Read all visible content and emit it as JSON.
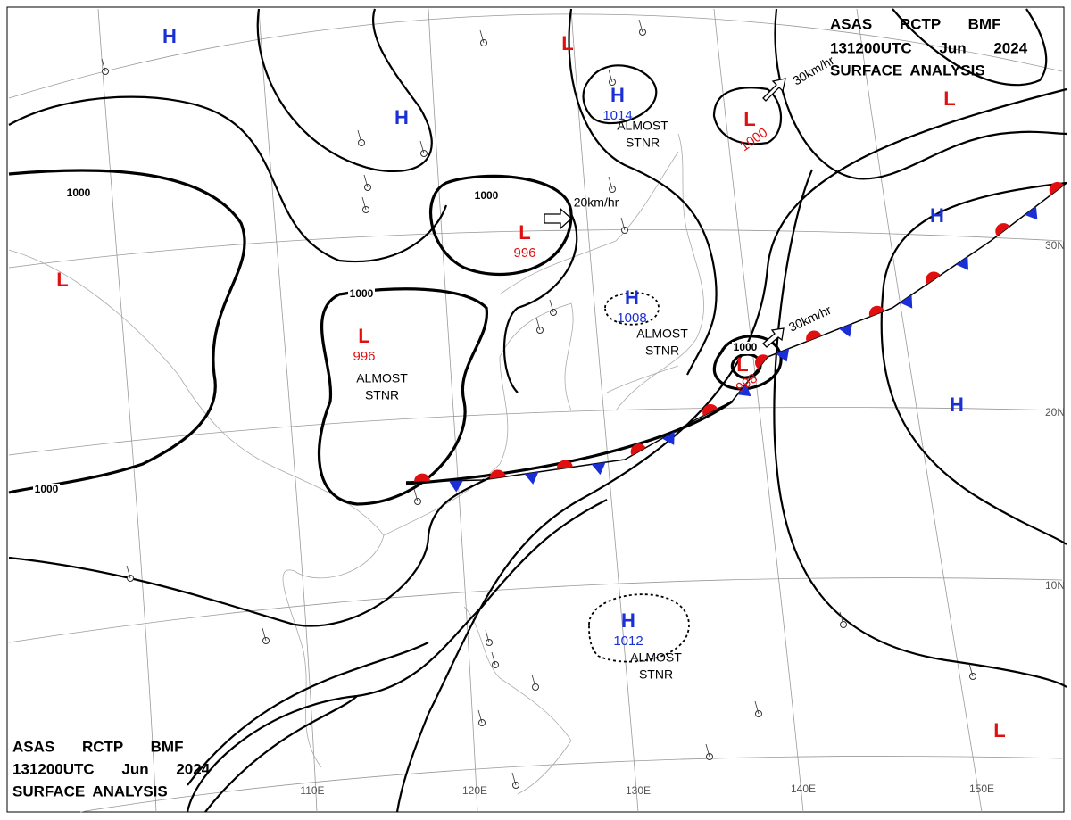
{
  "header": {
    "line1": "ASAS RCTP BMF",
    "line2": "131200UTC Jun 2024",
    "line3": "SURFACE ANALYSIS"
  },
  "systems": [
    {
      "label": "H"
    },
    {
      "label": "L"
    },
    {
      "label": "H",
      "pressure": "1014",
      "note1": "ALMOST",
      "note2": "STNR"
    },
    {
      "label": "L",
      "pressure": "1000"
    },
    {
      "label": "L"
    },
    {
      "label": "H"
    },
    {
      "label": "L",
      "pressure": "996"
    },
    {
      "label": "L"
    },
    {
      "label": "L",
      "pressure": "996",
      "note1": "ALMOST",
      "note2": "STNR"
    },
    {
      "label": "H",
      "pressure": "1008",
      "note1": "ALMOST",
      "note2": "STNR"
    },
    {
      "label": "L",
      "pressure": "998"
    },
    {
      "label": "H"
    },
    {
      "label": "H"
    },
    {
      "label": "H",
      "pressure": "1012",
      "note1": "ALMOST",
      "note2": "STNR"
    },
    {
      "label": "L"
    }
  ],
  "motions": [
    "30km/hr",
    "20km/hr",
    "30km/hr"
  ],
  "isobar_labels": [
    "1000",
    "1000",
    "1000",
    "1000",
    "1000"
  ],
  "latitudes": [
    "30N",
    "20N",
    "10N"
  ],
  "longitudes": [
    "110E",
    "120E",
    "130E",
    "140E",
    "150E"
  ]
}
